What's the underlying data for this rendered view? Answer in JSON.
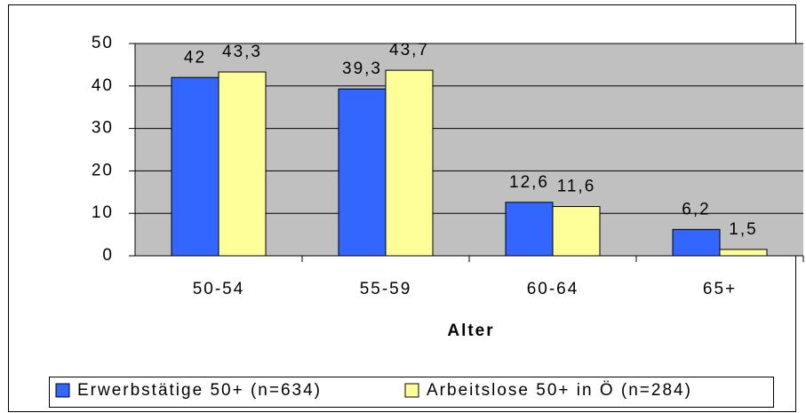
{
  "chart_data": {
    "type": "bar",
    "categories": [
      "50-54",
      "55-59",
      "60-64",
      "65+"
    ],
    "series": [
      {
        "name": "Erwerbstätige 50+ (n=634)",
        "color": "#3366ff",
        "values": [
          42,
          39.3,
          12.6,
          6.2
        ],
        "value_labels": [
          "42",
          "39,3",
          "12,6",
          "6,2"
        ]
      },
      {
        "name": "Arbeitslose 50+ in Ö (n=284)",
        "color": "#ffff99",
        "values": [
          43.3,
          43.7,
          11.6,
          1.5
        ],
        "value_labels": [
          "43,3",
          "43,7",
          "11,6",
          "1,5"
        ]
      }
    ],
    "xlabel": "Alter",
    "ylim": [
      0,
      50
    ],
    "yticks": [
      0,
      10,
      20,
      30,
      40,
      50
    ],
    "grid": true,
    "plot_background": "#c0c0c0"
  }
}
